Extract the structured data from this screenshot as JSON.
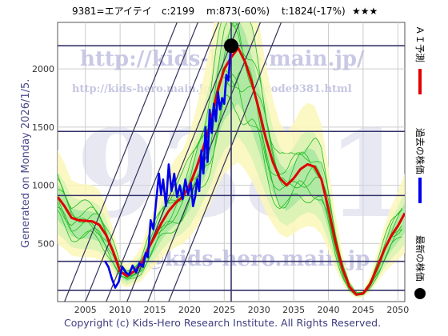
{
  "header": {
    "code_name": "9381=エアイテイ",
    "current": "c:2199",
    "mean": "m:873(-60%)",
    "target": "t:1824(-17%)",
    "rating": "★★★"
  },
  "side_label": "Generated on Monday 2026/1/5.",
  "footer": "Copyright (c) Kids-Hero Research Institute. All Rights Reserved.",
  "watermarks": {
    "url": "http://kids-hero.main.jp/",
    "page": "http://kids-hero.main.jp/analysis/code9381.html",
    "email": "@kids-hero.main.jp",
    "code": "9381"
  },
  "legend": [
    {
      "label": "ＡＩ予測",
      "color": "#e00000",
      "kind": "line"
    },
    {
      "label": "過去の株価",
      "color": "#0000ee",
      "kind": "line"
    },
    {
      "label": "最新の株価",
      "color": "#000000",
      "kind": "dot"
    }
  ],
  "chart_data": {
    "type": "line",
    "xlim": [
      2001,
      2051
    ],
    "ylim": [
      0,
      2400
    ],
    "x_ticks": [
      2005,
      2010,
      2015,
      2020,
      2025,
      2030,
      2035,
      2040,
      2045,
      2050
    ],
    "y_ticks": [
      500,
      1000,
      1500,
      2000
    ],
    "grid": true,
    "hlines": [
      2199,
      1463,
      912,
      346,
      97
    ],
    "vline": 2026,
    "latest_point": {
      "x": 2026.0,
      "y": 2199
    },
    "series": [
      {
        "name": "ＡＩ予測",
        "color": "#e00000",
        "points": [
          [
            2001,
            900
          ],
          [
            2002,
            820
          ],
          [
            2003,
            720
          ],
          [
            2004,
            700
          ],
          [
            2006,
            690
          ],
          [
            2007,
            660
          ],
          [
            2008,
            570
          ],
          [
            2009,
            430
          ],
          [
            2010,
            260
          ],
          [
            2011,
            220
          ],
          [
            2012,
            260
          ],
          [
            2013,
            320
          ],
          [
            2014,
            450
          ],
          [
            2015,
            560
          ],
          [
            2016,
            680
          ],
          [
            2017,
            780
          ],
          [
            2018,
            850
          ],
          [
            2019,
            900
          ],
          [
            2020,
            1000
          ],
          [
            2021,
            1150
          ],
          [
            2022,
            1330
          ],
          [
            2023,
            1520
          ],
          [
            2024,
            1800
          ],
          [
            2025,
            2000
          ],
          [
            2026,
            2100
          ],
          [
            2027,
            2180
          ],
          [
            2028,
            2060
          ],
          [
            2029,
            1880
          ],
          [
            2030,
            1650
          ],
          [
            2031,
            1400
          ],
          [
            2032,
            1200
          ],
          [
            2033,
            1060
          ],
          [
            2034,
            1000
          ],
          [
            2035,
            1060
          ],
          [
            2036,
            1140
          ],
          [
            2037,
            1180
          ],
          [
            2038,
            1160
          ],
          [
            2039,
            1050
          ],
          [
            2040,
            800
          ],
          [
            2041,
            520
          ],
          [
            2042,
            290
          ],
          [
            2043,
            130
          ],
          [
            2044,
            60
          ],
          [
            2045,
            70
          ],
          [
            2046,
            150
          ],
          [
            2047,
            290
          ],
          [
            2048,
            440
          ],
          [
            2049,
            560
          ],
          [
            2050,
            650
          ],
          [
            2051,
            760
          ]
        ]
      },
      {
        "name": "過去の株価",
        "color": "#0000ee",
        "points": [
          [
            2007.8,
            350
          ],
          [
            2008.3,
            300
          ],
          [
            2008.8,
            200
          ],
          [
            2009.3,
            120
          ],
          [
            2009.8,
            170
          ],
          [
            2010.3,
            300
          ],
          [
            2010.8,
            250
          ],
          [
            2011.3,
            230
          ],
          [
            2011.8,
            310
          ],
          [
            2012.3,
            250
          ],
          [
            2012.8,
            330
          ],
          [
            2013.3,
            300
          ],
          [
            2013.7,
            420
          ],
          [
            2014.0,
            380
          ],
          [
            2014.4,
            700
          ],
          [
            2014.8,
            620
          ],
          [
            2015.2,
            870
          ],
          [
            2015.6,
            1100
          ],
          [
            2015.9,
            920
          ],
          [
            2016.2,
            1050
          ],
          [
            2016.6,
            820
          ],
          [
            2017.0,
            1180
          ],
          [
            2017.4,
            950
          ],
          [
            2017.8,
            1100
          ],
          [
            2018.2,
            900
          ],
          [
            2018.6,
            1000
          ],
          [
            2019.0,
            880
          ],
          [
            2019.4,
            1050
          ],
          [
            2019.8,
            920
          ],
          [
            2020.2,
            1020
          ],
          [
            2020.5,
            820
          ],
          [
            2020.8,
            900
          ],
          [
            2021.1,
            1050
          ],
          [
            2021.4,
            950
          ],
          [
            2021.7,
            1300
          ],
          [
            2022.0,
            1100
          ],
          [
            2022.3,
            1500
          ],
          [
            2022.6,
            1200
          ],
          [
            2022.9,
            1650
          ],
          [
            2023.2,
            1450
          ],
          [
            2023.5,
            1700
          ],
          [
            2023.8,
            1550
          ],
          [
            2024.1,
            1800
          ],
          [
            2024.4,
            1650
          ],
          [
            2024.7,
            1750
          ],
          [
            2025.0,
            1700
          ],
          [
            2025.3,
            1950
          ],
          [
            2025.6,
            1900
          ],
          [
            2025.9,
            2150
          ],
          [
            2026.0,
            2199
          ]
        ]
      }
    ]
  }
}
